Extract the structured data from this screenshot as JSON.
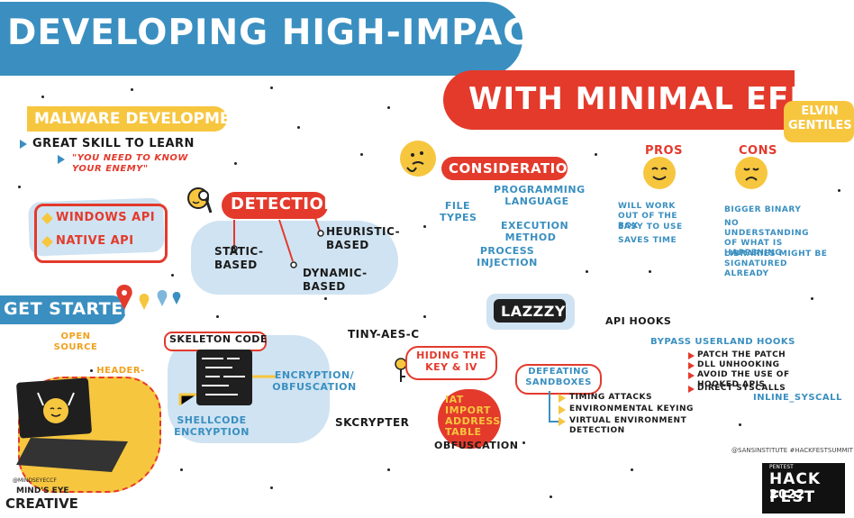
{
  "header": {
    "title": "DEVELOPING HIGH-IMPACT MALWARE",
    "subtitle": "WITH MINIMAL EFFORT",
    "author": "ELVIN GENTILES"
  },
  "malware_dev": {
    "heading": "MALWARE DEVELOPMENT",
    "point": "GREAT SKILL TO LEARN",
    "quote": "\"YOU NEED TO KNOW YOUR ENEMY\""
  },
  "apis": [
    "WINDOWS API",
    "NATIVE API"
  ],
  "detection": {
    "heading": "DETECTION",
    "static": "STATIC-BASED",
    "dynamic": "DYNAMIC-BASED",
    "heuristic": "HEURISTIC-BASED"
  },
  "considerations": {
    "heading": "CONSIDERATIONS",
    "file_types": "FILE TYPES",
    "prog_lang": "PROGRAMMING LANGUAGE",
    "exec_method": "EXECUTION METHOD",
    "proc_inj": "PROCESS INJECTION"
  },
  "pros": {
    "title": "PROS",
    "items": [
      "WILL WORK OUT OF THE BOX",
      "EASY TO USE",
      "SAVES TIME"
    ]
  },
  "cons": {
    "title": "CONS",
    "items": [
      "BIGGER BINARY",
      "NO UNDERSTANDING OF WHAT IS HAPPENING",
      "LIBRARIES MIGHT BE SIGNATURED ALREADY"
    ]
  },
  "get_started": {
    "heading": "GET STARTED",
    "open_source": "OPEN SOURCE",
    "header_only": "HEADER-ONLY LIBRARIES"
  },
  "skeleton": {
    "label": "SKELETON CODE",
    "encryption": "ENCRYPTION/ OBFUSCATION",
    "shellcode": "SHELLCODE ENCRYPTION"
  },
  "tools": {
    "tiny_aes": "TINY-AES-C",
    "skcrypter": "SKCRYPTER",
    "hiding": "HIDING THE KEY & IV",
    "iat": "IAT IMPORT ADDRESS TABLE",
    "obfuscation": "OBFUSCATION",
    "lazzzy": "LAZZZY"
  },
  "sandboxes": {
    "heading": "DEFEATING SANDBOXES",
    "items": [
      "TIMING ATTACKS",
      "ENVIRONMENTAL KEYING",
      "VIRTUAL ENVIRONMENT DETECTION"
    ]
  },
  "hooks": {
    "heading": "API HOOKS",
    "bypass": "BYPASS USERLAND HOOKS",
    "items": [
      "PATCH THE PATCH",
      "DLL UNHOOKING",
      "AVOID THE USE OF HOOKED APIS",
      "DIRECT SYSCALLS"
    ],
    "inline": "INLINE_SYSCALL"
  },
  "footer": {
    "social": "@SANSINSTITUTE #HACKFESTSUMMIT",
    "event_top": "PENTEST",
    "event_name": "HACK FEST",
    "event_year": "2022",
    "artist_handle": "@MINDSEYECCF",
    "artist_line1": "MIND'S EYE",
    "artist_line2": "CREATIVE"
  },
  "colors": {
    "blue": "#3a8fc0",
    "red": "#e33a2c",
    "yellow": "#f7c63f",
    "light_blue": "#cfe3f2"
  }
}
